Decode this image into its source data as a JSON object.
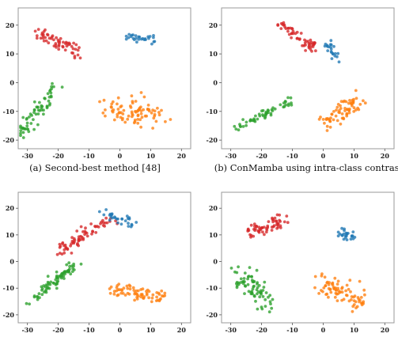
{
  "colors": {
    "red": "#d62728",
    "blue": "#1f77b4",
    "green": "#2ca02c",
    "orange": "#ff7f0e"
  },
  "chart_data": [
    {
      "type": "scatter",
      "caption": "(a) Second-best method [48]",
      "xlim": [
        -33,
        23
      ],
      "ylim": [
        -23,
        26
      ],
      "xticks": [
        -30,
        -20,
        -10,
        0,
        10,
        20
      ],
      "yticks": [
        20,
        10,
        0,
        -10,
        -20
      ],
      "grid": false,
      "clusters": [
        {
          "color": "red",
          "n": 60,
          "x": [
            -27,
            -13
          ],
          "y": [
            17.5,
            10.5
          ],
          "spread": 1.3
        },
        {
          "color": "blue",
          "n": 28,
          "x": [
            2,
            11
          ],
          "y": [
            16,
            15
          ],
          "spread": 0.7
        },
        {
          "color": "green",
          "n": 65,
          "x": [
            -32,
            -19.5
          ],
          "y": [
            -18,
            0.5
          ],
          "spread": 1.2
        },
        {
          "color": "orange",
          "n": 85,
          "x": [
            -4,
            12
          ],
          "y": [
            -9.5,
            -10.5
          ],
          "spread": 2.7
        }
      ]
    },
    {
      "type": "scatter",
      "caption": "(b) ConMamba using intra-class contrast",
      "xlim": [
        -33,
        23
      ],
      "ylim": [
        -23,
        26
      ],
      "xticks": [
        -30,
        -20,
        -10,
        0,
        10,
        20
      ],
      "yticks": [
        20,
        10,
        0,
        -10,
        -20
      ],
      "grid": false,
      "clusters": [
        {
          "color": "red",
          "n": 55,
          "x": [
            -15,
            -2
          ],
          "y": [
            21.5,
            11.5
          ],
          "spread": 1.1
        },
        {
          "color": "blue",
          "n": 22,
          "x": [
            1,
            4.5
          ],
          "y": [
            14,
            7.5
          ],
          "spread": 0.7
        },
        {
          "color": "green",
          "n": 55,
          "x": [
            -29,
            -10.5
          ],
          "y": [
            -16.5,
            -6
          ],
          "spread": 0.8
        },
        {
          "color": "orange",
          "n": 70,
          "x": [
            1,
            12.5
          ],
          "y": [
            -15,
            -4.5
          ],
          "spread": 1.8
        }
      ]
    },
    {
      "type": "scatter",
      "caption": "",
      "xlim": [
        -33,
        23
      ],
      "ylim": [
        -23,
        26
      ],
      "xticks": [
        -30,
        -20,
        -10,
        0,
        10,
        20
      ],
      "yticks": [
        20,
        10,
        0,
        -10,
        -20
      ],
      "grid": false,
      "clusters": [
        {
          "color": "red",
          "n": 70,
          "x": [
            -20,
            -3
          ],
          "y": [
            4,
            16
          ],
          "spread": 1.2
        },
        {
          "color": "blue",
          "n": 30,
          "x": [
            -5,
            4
          ],
          "y": [
            18,
            14.5
          ],
          "spread": 1.0
        },
        {
          "color": "green",
          "n": 75,
          "x": [
            -31,
            -15
          ],
          "y": [
            -17,
            -1.5
          ],
          "spread": 1.0
        },
        {
          "color": "orange",
          "n": 70,
          "x": [
            -3,
            14
          ],
          "y": [
            -10.5,
            -13.5
          ],
          "spread": 1.6
        }
      ]
    },
    {
      "type": "scatter",
      "caption": "",
      "xlim": [
        -33,
        23
      ],
      "ylim": [
        -23,
        26
      ],
      "xticks": [
        -30,
        -20,
        -10,
        0,
        10,
        20
      ],
      "yticks": [
        20,
        10,
        0,
        -10,
        -20
      ],
      "grid": false,
      "clusters": [
        {
          "color": "red",
          "n": 60,
          "x": [
            -25,
            -13
          ],
          "y": [
            10.5,
            15
          ],
          "spread": 1.7
        },
        {
          "color": "blue",
          "n": 25,
          "x": [
            6,
            9
          ],
          "y": [
            10,
            10
          ],
          "spread": 1.0
        },
        {
          "color": "green",
          "n": 75,
          "x": [
            -28,
            -17
          ],
          "y": [
            -3,
            -16
          ],
          "spread": 2.4
        },
        {
          "color": "orange",
          "n": 80,
          "x": [
            -1,
            13
          ],
          "y": [
            -8,
            -15
          ],
          "spread": 2.2
        }
      ]
    }
  ]
}
